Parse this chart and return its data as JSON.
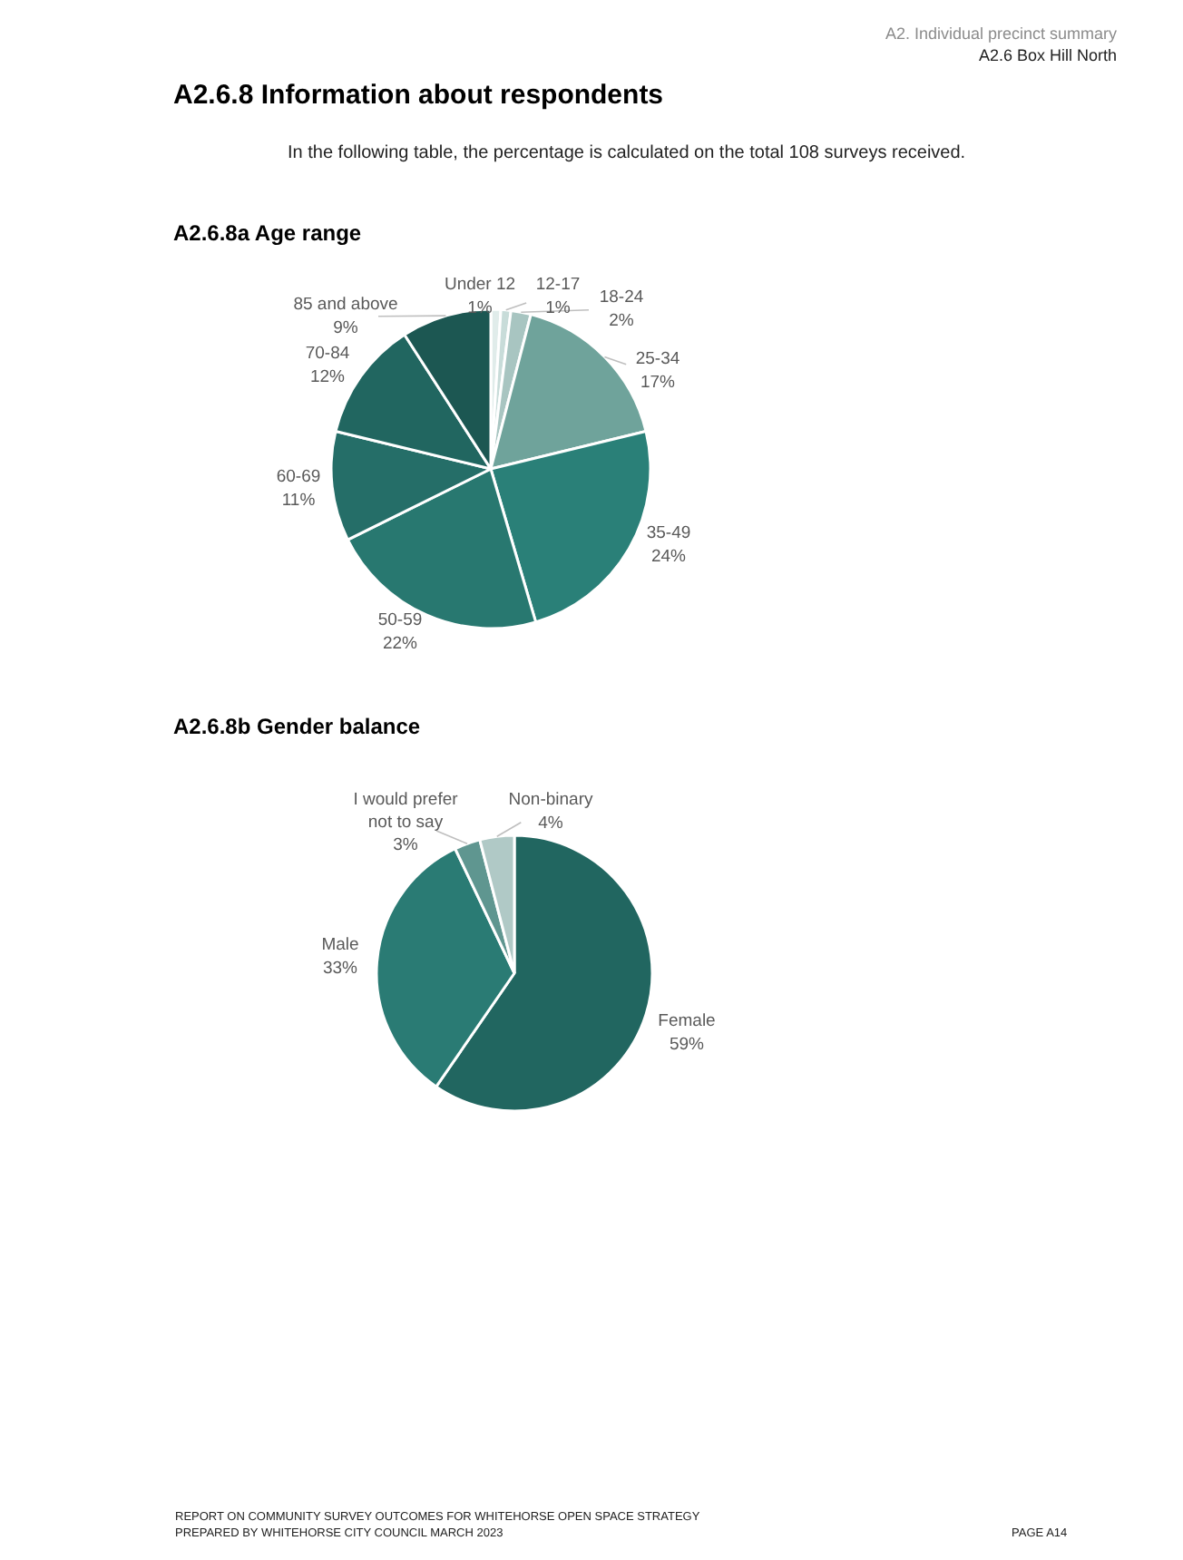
{
  "chart_data": [
    {
      "type": "pie",
      "title": "A2.6.8a Age range",
      "annotations": [
        "A2. Individual precinct summary",
        "A2.6 Box Hill North",
        "A2.6.8 Information about respondents",
        "In the following table, the percentage is calculated on the total 108 surveys received."
      ],
      "categories": [
        "Under 12",
        "12-17",
        "18-24",
        "25-34",
        "35-49",
        "50-59",
        "60-69",
        "70-84",
        "85 and above"
      ],
      "values": [
        1,
        1,
        2,
        17,
        24,
        22,
        11,
        12,
        9
      ],
      "value_labels": [
        "1%",
        "1%",
        "2%",
        "17%",
        "24%",
        "22%",
        "11%",
        "12%",
        "9%"
      ],
      "colors": [
        "#e0ecea",
        "#c8dcd9",
        "#a8c5c1",
        "#6fa39b",
        "#2a8078",
        "#287870",
        "#256e68",
        "#216660",
        "#1c5752"
      ]
    },
    {
      "type": "pie",
      "title": "A2.6.8b Gender balance",
      "annotations": [
        "REPORT ON COMMUNITY SURVEY OUTCOMES FOR WHITEHORSE OPEN SPACE STRATEGY",
        "PREPARED BY WHITEHORSE CITY COUNCIL MARCH 2023",
        "PAGE A14"
      ],
      "categories": [
        "Female",
        "Male",
        "I would prefer not to say",
        "Non-binary"
      ],
      "values": [
        59,
        33,
        3,
        4
      ],
      "value_labels": [
        "59%",
        "33%",
        "3%",
        "4%"
      ],
      "colors": [
        "#216660",
        "#2a7b74",
        "#5f9690",
        "#b0c9c6"
      ]
    }
  ]
}
